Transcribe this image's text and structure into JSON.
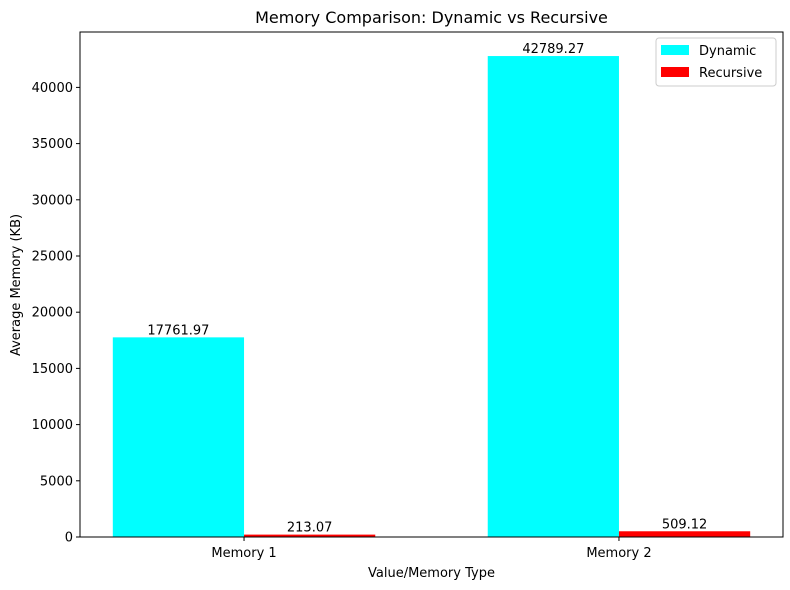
{
  "chart_data": {
    "type": "bar",
    "title": "Memory Comparison: Dynamic vs Recursive",
    "xlabel": "Value/Memory Type",
    "ylabel": "Average Memory (KB)",
    "categories": [
      "Memory 1",
      "Memory 2"
    ],
    "series": [
      {
        "name": "Dynamic",
        "values": [
          17761.97,
          42789.27
        ],
        "color": "#00ffff"
      },
      {
        "name": "Recursive",
        "values": [
          213.07,
          509.12
        ],
        "color": "#ff0000"
      }
    ],
    "data_labels": [
      [
        "17761.97",
        "42789.27"
      ],
      [
        "213.07",
        "509.12"
      ]
    ],
    "ylim": [
      0,
      44928.7
    ],
    "yticks": [
      0,
      5000,
      10000,
      15000,
      20000,
      25000,
      30000,
      35000,
      40000
    ],
    "grid": false,
    "legend_position": "top-right"
  }
}
